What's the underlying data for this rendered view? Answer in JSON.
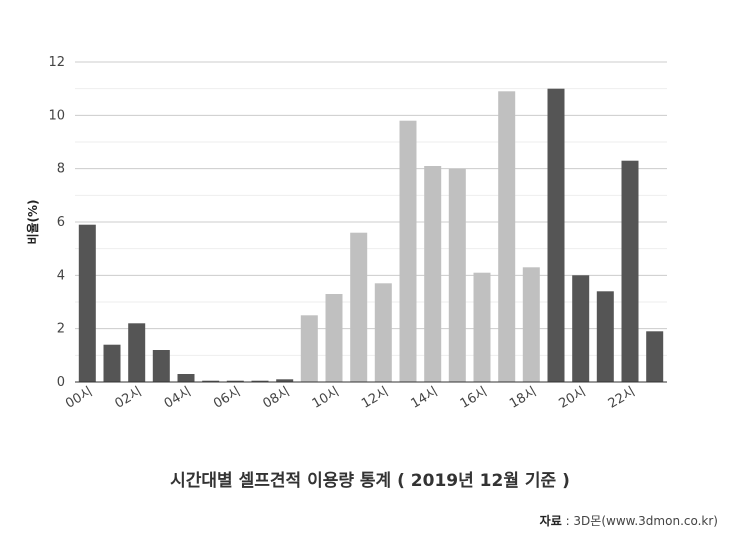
{
  "chart_data": {
    "type": "bar",
    "title": "시간대별 셀프견적 이용량 통계 ( 2019년 12월 기준 )",
    "ylabel": "비율(%)",
    "xlabel": "",
    "ylim": [
      0,
      12
    ],
    "yticks": [
      0,
      2,
      4,
      6,
      8,
      10,
      12
    ],
    "grid": true,
    "categories": [
      "00시",
      "01시",
      "02시",
      "03시",
      "04시",
      "05시",
      "06시",
      "07시",
      "08시",
      "09시",
      "10시",
      "11시",
      "12시",
      "13시",
      "14시",
      "15시",
      "16시",
      "17시",
      "18시",
      "19시",
      "20시",
      "21시",
      "22시",
      "23시"
    ],
    "xtick_labels": [
      "00시",
      "02시",
      "04시",
      "06시",
      "08시",
      "10시",
      "12시",
      "14시",
      "16시",
      "18시",
      "20시",
      "22시"
    ],
    "values": [
      5.9,
      1.4,
      2.2,
      1.2,
      0.3,
      0.05,
      0.05,
      0.05,
      0.1,
      2.5,
      3.3,
      5.6,
      3.7,
      9.8,
      8.1,
      8.0,
      4.1,
      10.9,
      4.3,
      11.0,
      4.0,
      3.4,
      8.3,
      1.9
    ],
    "colors": {
      "dark": "#555555",
      "light": "#c0c0c0",
      "bar_color_per_category": [
        "dark",
        "dark",
        "dark",
        "dark",
        "dark",
        "dark",
        "dark",
        "dark",
        "dark",
        "light",
        "light",
        "light",
        "light",
        "light",
        "light",
        "light",
        "light",
        "light",
        "light",
        "dark",
        "dark",
        "dark",
        "dark",
        "dark"
      ],
      "grid": "#cccccc",
      "axis": "#333333"
    }
  },
  "source": {
    "label": "자료",
    "text": " : 3D몬(www.3dmon.co.kr)"
  }
}
